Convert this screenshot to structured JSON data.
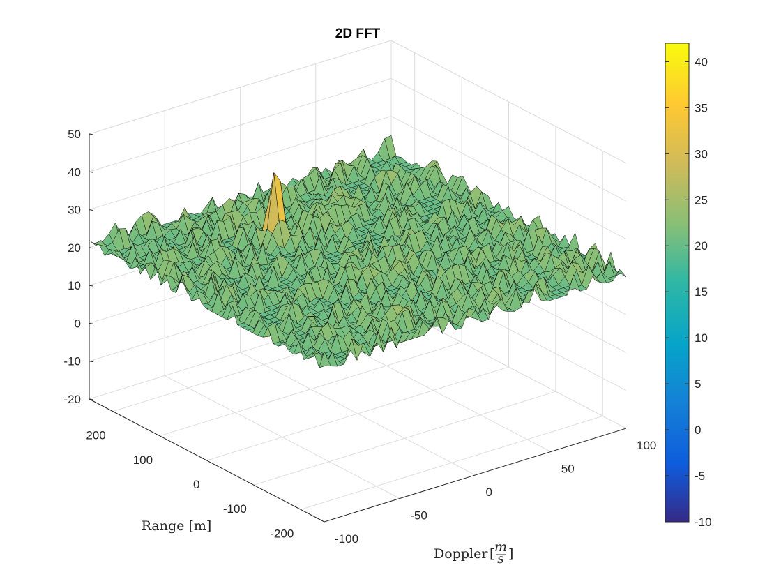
{
  "chart_data": {
    "type": "surface",
    "title": "2D FFT",
    "xlabel": "Doppler",
    "xlabel_unit_numerator": "m",
    "xlabel_unit_denominator": "s",
    "ylabel": "Range [m]",
    "x_ticks": [
      "-100",
      "-50",
      "0",
      "50",
      "100"
    ],
    "y_ticks": [
      "200",
      "100",
      "0",
      "-100",
      "-200"
    ],
    "z_ticks": [
      "50",
      "40",
      "30",
      "20",
      "10",
      "0",
      "-10",
      "-20"
    ],
    "colorbar_ticks": [
      "40",
      "35",
      "30",
      "25",
      "20",
      "15",
      "10",
      "5",
      "0",
      "-5",
      "-10"
    ],
    "x_range": [
      -100,
      100
    ],
    "y_range": [
      -250,
      250
    ],
    "z_range": [
      -20,
      50
    ],
    "clim": [
      -10,
      42
    ],
    "colormap": "parula",
    "noise_floor_mean": 20,
    "peak": {
      "doppler": -20,
      "range": 110,
      "value": 42
    },
    "grid": true
  }
}
